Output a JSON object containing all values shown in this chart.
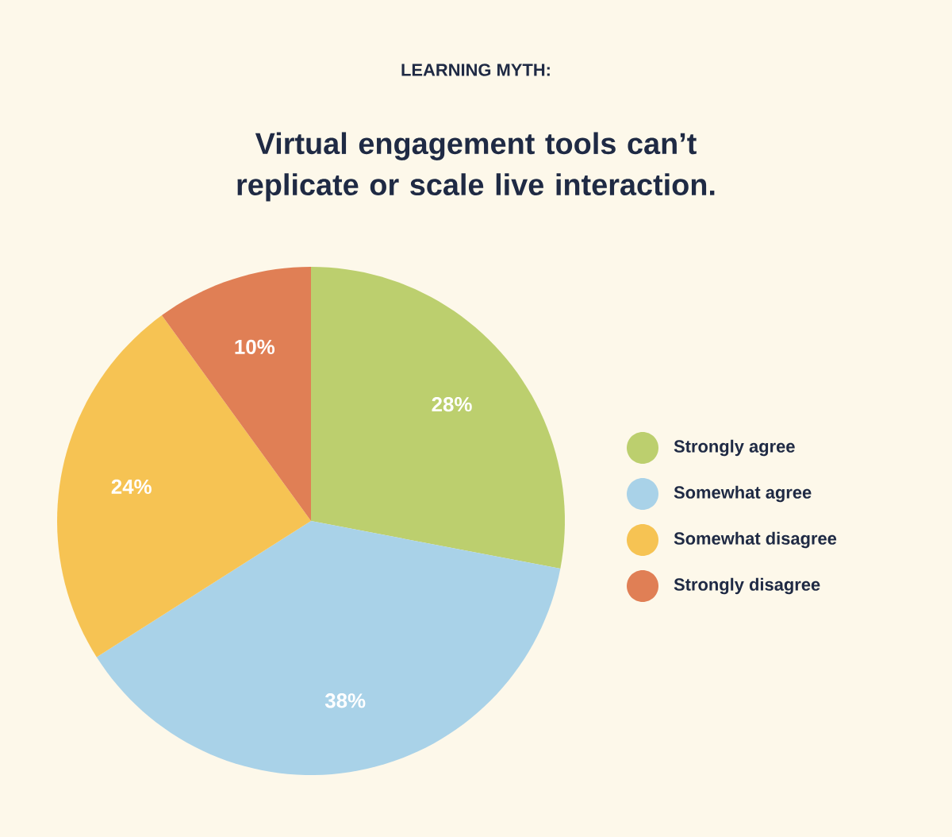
{
  "chart_data": {
    "type": "pie",
    "title": "Virtual engagement tools can’t replicate or scale live interaction.",
    "subtitle": "LEARNING MYTH:",
    "categories": [
      "Strongly agree",
      "Somewhat agree",
      "Somewhat disagree",
      "Strongly disagree"
    ],
    "values": [
      28,
      38,
      24,
      10
    ],
    "value_labels": [
      "28%",
      "38%",
      "24%",
      "10%"
    ],
    "colors": [
      "#bccf6e",
      "#a9d2e8",
      "#f6c353",
      "#e07f55"
    ],
    "legend": "right"
  }
}
